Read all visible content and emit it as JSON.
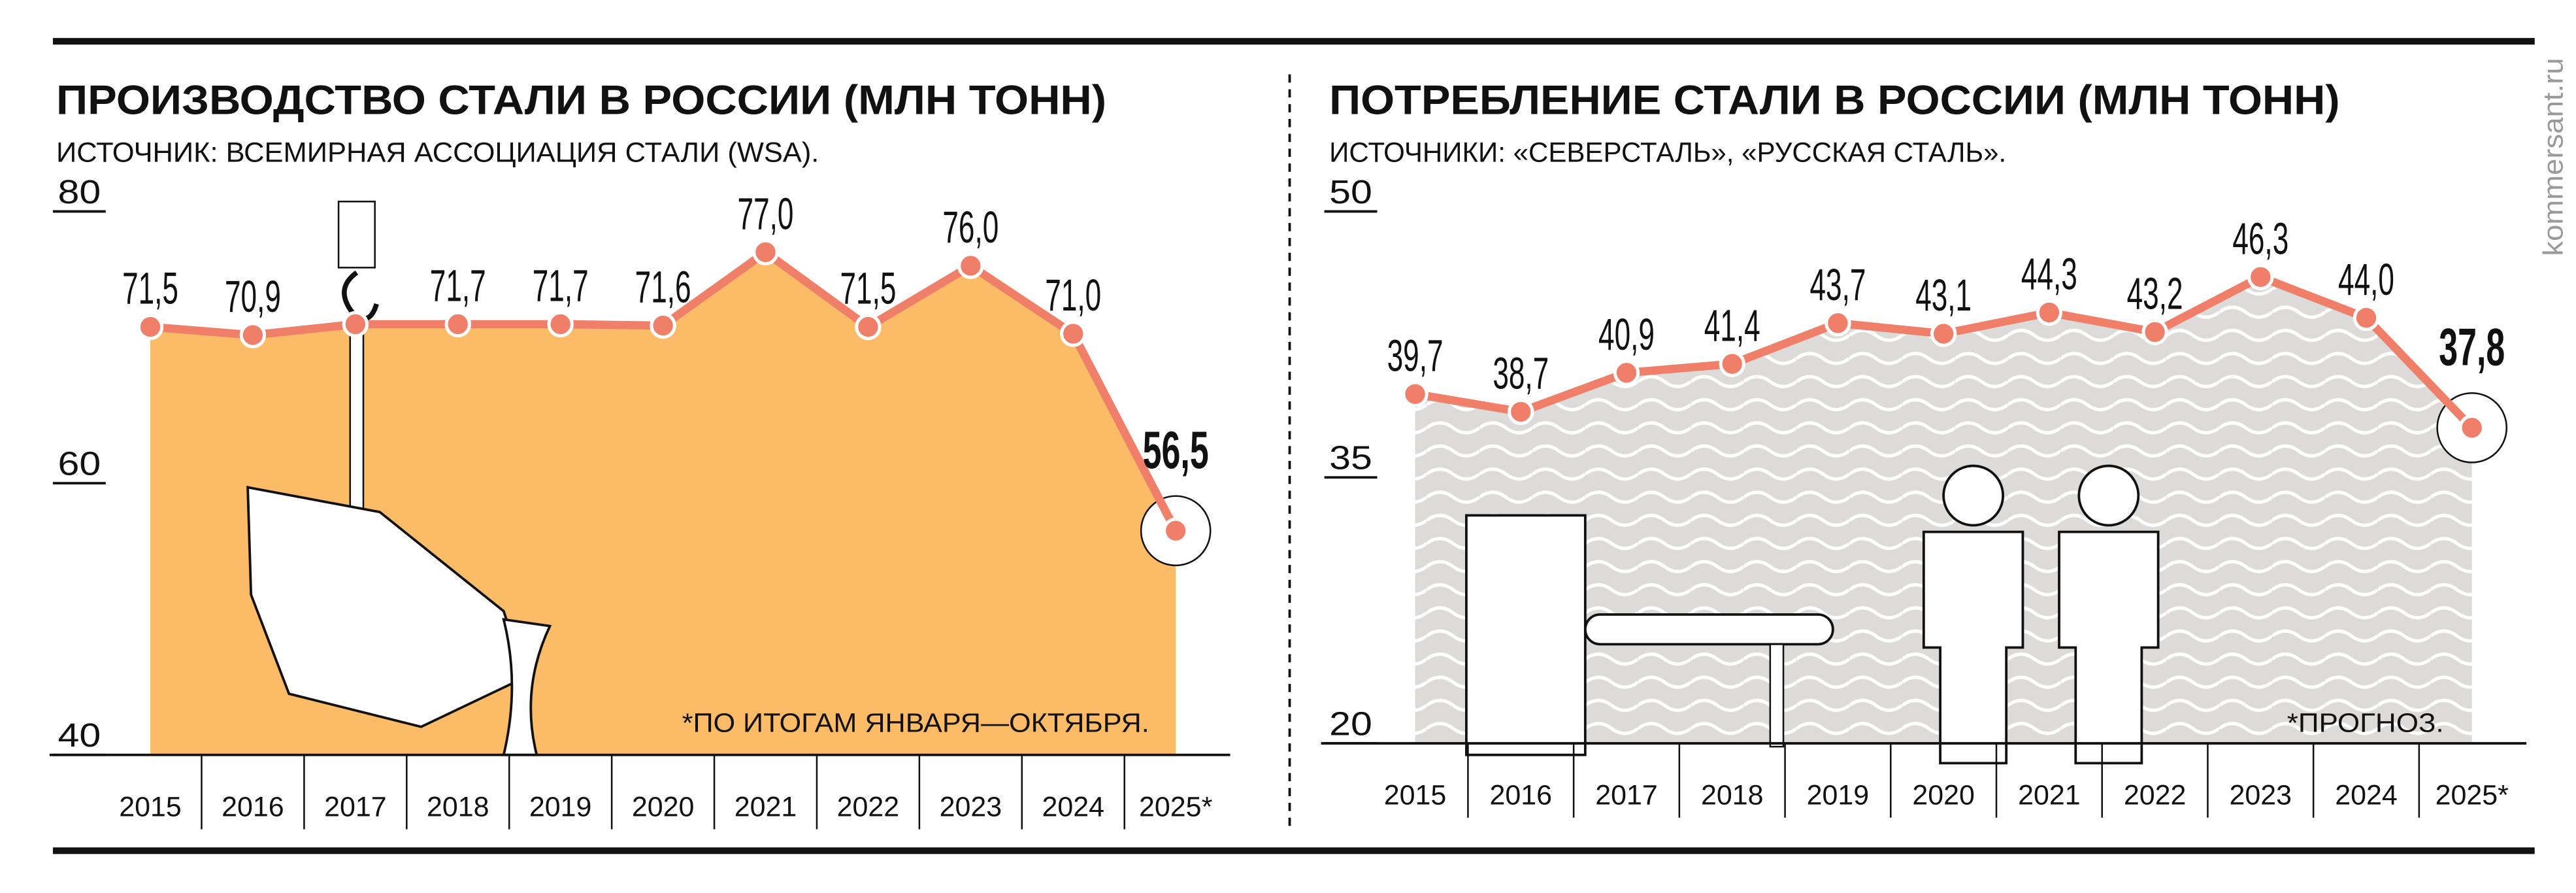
{
  "brand": "kommersant.ru",
  "colors": {
    "line": "#f07f6a",
    "area_left": "#fbbb67",
    "area_right": "#dcdbda",
    "text": "#111111"
  },
  "chart_data": [
    {
      "type": "area",
      "title": "ПРОИЗВОДСТВО СТАЛИ В РОССИИ (МЛН ТОНН)",
      "subtitle": "ИСТОЧНИК: ВСЕМИРНАЯ АССОЦИАЦИЯ СТАЛИ (WSA).",
      "categories": [
        "2015",
        "2016",
        "2017",
        "2018",
        "2019",
        "2020",
        "2021",
        "2022",
        "2023",
        "2024",
        "2025*"
      ],
      "values": [
        71.5,
        70.9,
        71.7,
        71.7,
        71.7,
        71.6,
        77.0,
        71.5,
        76.0,
        71.0,
        56.5
      ],
      "labels": [
        "71,5",
        "70,9",
        "",
        "71,7",
        "71,7",
        "71,6",
        "77,0",
        "71,5",
        "76,0",
        "71,0",
        "56,5"
      ],
      "yticks": [
        "80",
        "60",
        "40"
      ],
      "ytick_values": [
        80,
        60,
        40
      ],
      "ylim": [
        40,
        80
      ],
      "footnote": "*ПО ИТОГАМ ЯНВАРЯ—ОКТЯБРЯ.",
      "grid": false
    },
    {
      "type": "area",
      "title": "ПОТРЕБЛЕНИЕ СТАЛИ В РОССИИ (МЛН ТОНН)",
      "subtitle": "ИСТОЧНИКИ: «СЕВЕРСТАЛЬ», «РУССКАЯ СТАЛЬ».",
      "categories": [
        "2015",
        "2016",
        "2017",
        "2018",
        "2019",
        "2020",
        "2021",
        "2022",
        "2023",
        "2024",
        "2025*"
      ],
      "values": [
        39.7,
        38.7,
        40.9,
        41.4,
        43.7,
        43.1,
        44.3,
        43.2,
        46.3,
        44.0,
        37.8
      ],
      "labels": [
        "39,7",
        "38,7",
        "40,9",
        "41,4",
        "43,7",
        "43,1",
        "44,3",
        "43,2",
        "46,3",
        "44,0",
        "37,8"
      ],
      "yticks": [
        "50",
        "35",
        "20"
      ],
      "ytick_values": [
        50,
        35,
        20
      ],
      "ylim": [
        20,
        50
      ],
      "footnote": "*ПРОГНОЗ.",
      "grid": false
    }
  ]
}
